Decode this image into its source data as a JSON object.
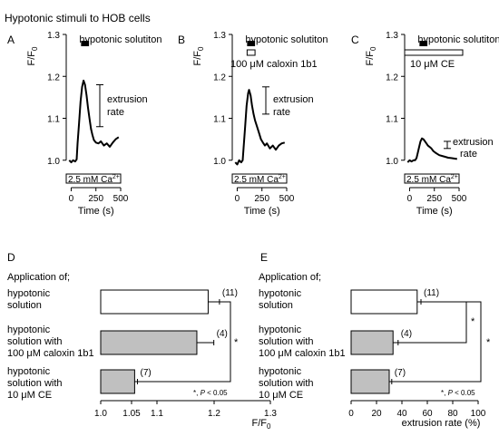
{
  "figure": {
    "title": "Hypotonic stimuli to HOB cells",
    "panel_letters": [
      "A",
      "B",
      "C",
      "D",
      "E"
    ],
    "sub_zero": "0"
  },
  "chart_data": [
    {
      "panel": "A",
      "type": "line",
      "ylabel": "F/F",
      "xlabel": "Time (s)",
      "xlim": [
        -50,
        500
      ],
      "ylim": [
        0.98,
        1.3
      ],
      "xticks": [
        "0",
        "250",
        "500"
      ],
      "yticks": [
        "1.0",
        "1.1",
        "1.2",
        "1.3"
      ],
      "stimulus_label": "hypotonic solutiton",
      "stimulus_window": [
        100,
        180
      ],
      "treatment_label": "",
      "calcium_label": "2.5 mM Ca",
      "calcium_sup": "2+",
      "annotation": [
        "extrusion",
        "rate"
      ],
      "rate_bar": [
        1.08,
        1.18
      ],
      "trace": [
        [
          -20,
          1.0
        ],
        [
          0,
          0.995
        ],
        [
          20,
          1.0
        ],
        [
          40,
          0.997
        ],
        [
          55,
          1.002
        ],
        [
          65,
          1.04
        ],
        [
          80,
          1.09
        ],
        [
          95,
          1.14
        ],
        [
          110,
          1.175
        ],
        [
          125,
          1.19
        ],
        [
          140,
          1.18
        ],
        [
          155,
          1.155
        ],
        [
          170,
          1.125
        ],
        [
          185,
          1.1
        ],
        [
          200,
          1.075
        ],
        [
          215,
          1.06
        ],
        [
          230,
          1.048
        ],
        [
          250,
          1.042
        ],
        [
          275,
          1.04
        ],
        [
          300,
          1.045
        ],
        [
          330,
          1.035
        ],
        [
          360,
          1.04
        ],
        [
          390,
          1.032
        ],
        [
          420,
          1.042
        ],
        [
          450,
          1.05
        ],
        [
          480,
          1.055
        ]
      ]
    },
    {
      "panel": "B",
      "type": "line",
      "ylabel": "F/F",
      "xlabel": "Time (s)",
      "xlim": [
        -50,
        500
      ],
      "ylim": [
        0.98,
        1.3
      ],
      "xticks": [
        "0",
        "250",
        "500"
      ],
      "yticks": [
        "1.0",
        "1.1",
        "1.2",
        "1.3"
      ],
      "stimulus_label": "hypotonic solutiton",
      "stimulus_window": [
        100,
        180
      ],
      "treatment_label": "100 μM caloxin 1b1",
      "calcium_label": "2.5 mM Ca",
      "calcium_sup": "2+",
      "annotation": [
        "extrusion",
        "rate"
      ],
      "rate_bar": [
        1.11,
        1.175
      ],
      "trace": [
        [
          -20,
          0.995
        ],
        [
          0,
          0.99
        ],
        [
          20,
          1.0
        ],
        [
          40,
          0.995
        ],
        [
          55,
          1.0
        ],
        [
          65,
          1.03
        ],
        [
          80,
          1.08
        ],
        [
          95,
          1.13
        ],
        [
          110,
          1.16
        ],
        [
          120,
          1.168
        ],
        [
          135,
          1.155
        ],
        [
          150,
          1.13
        ],
        [
          165,
          1.11
        ],
        [
          180,
          1.095
        ],
        [
          200,
          1.08
        ],
        [
          220,
          1.065
        ],
        [
          240,
          1.05
        ],
        [
          260,
          1.042
        ],
        [
          280,
          1.035
        ],
        [
          300,
          1.04
        ],
        [
          330,
          1.028
        ],
        [
          360,
          1.035
        ],
        [
          390,
          1.025
        ],
        [
          420,
          1.035
        ],
        [
          450,
          1.04
        ],
        [
          480,
          1.042
        ]
      ]
    },
    {
      "panel": "C",
      "type": "line",
      "ylabel": "F/F",
      "xlabel": "Time (s)",
      "xlim": [
        -50,
        500
      ],
      "ylim": [
        0.98,
        1.3
      ],
      "xticks": [
        "0",
        "250",
        "500"
      ],
      "yticks": [
        "1.0",
        "1.1",
        "1.2",
        "1.3"
      ],
      "stimulus_label": "hypotonic solutiton",
      "stimulus_window": [
        100,
        180
      ],
      "treatment_label": "10 μM CE",
      "calcium_label": "2.5 mM Ca",
      "calcium_sup": "2+",
      "annotation": [
        "extrusion",
        "rate"
      ],
      "rate_bar": [
        1.028,
        1.045
      ],
      "trace": [
        [
          -20,
          0.995
        ],
        [
          0,
          1.0
        ],
        [
          20,
          0.997
        ],
        [
          40,
          1.0
        ],
        [
          55,
          1.0
        ],
        [
          70,
          1.005
        ],
        [
          80,
          1.015
        ],
        [
          95,
          1.03
        ],
        [
          110,
          1.045
        ],
        [
          125,
          1.052
        ],
        [
          140,
          1.05
        ],
        [
          155,
          1.045
        ],
        [
          170,
          1.04
        ],
        [
          185,
          1.035
        ],
        [
          200,
          1.032
        ],
        [
          220,
          1.028
        ],
        [
          240,
          1.022
        ],
        [
          260,
          1.018
        ],
        [
          280,
          1.015
        ],
        [
          300,
          1.012
        ],
        [
          330,
          1.01
        ],
        [
          360,
          1.008
        ],
        [
          390,
          1.006
        ],
        [
          420,
          1.005
        ],
        [
          450,
          1.004
        ],
        [
          480,
          1.003
        ]
      ]
    },
    {
      "panel": "D",
      "type": "bar",
      "orientation": "horizontal",
      "heading": "Application of;",
      "categories": [
        [
          "hypotonic",
          "solution"
        ],
        [
          "hypotonic",
          "solution with",
          "100 μM caloxin 1b1"
        ],
        [
          "hypotonic",
          "solution with",
          "10 μM CE"
        ]
      ],
      "values": [
        1.19,
        1.17,
        1.06
      ],
      "errors": [
        0.02,
        0.03,
        0.005
      ],
      "n_labels": [
        "(11)",
        "(4)",
        "(7)"
      ],
      "bar_colors": [
        "#ffffff",
        "#c0c0c0",
        "#c0c0c0"
      ],
      "xlim": [
        1.0,
        1.3
      ],
      "xticks": [
        "1.0",
        "1.05",
        "1.1",
        "1.2",
        "1.3"
      ],
      "xlabel": "F/F",
      "significance": [
        "*"
      ],
      "stat_note": [
        "*, ",
        "P",
        " < 0.05"
      ]
    },
    {
      "panel": "E",
      "type": "bar",
      "orientation": "horizontal",
      "heading": "Application of;",
      "categories": [
        [
          "hypotonic",
          "solution"
        ],
        [
          "hypotonic",
          "solution with",
          "100 μM caloxin 1b1"
        ],
        [
          "hypotonic",
          "solution with",
          "10 μM CE"
        ]
      ],
      "values": [
        52,
        33,
        30
      ],
      "errors": [
        3,
        4,
        2
      ],
      "n_labels": [
        "(11)",
        "(4)",
        "(7)"
      ],
      "bar_colors": [
        "#ffffff",
        "#c0c0c0",
        "#c0c0c0"
      ],
      "xlim": [
        0,
        100
      ],
      "xticks": [
        "0",
        "20",
        "40",
        "60",
        "80",
        "100"
      ],
      "xlabel": "extrusion rate (%)",
      "significance": [
        "*",
        "*"
      ],
      "stat_note": [
        "*, ",
        "P",
        " < 0.05"
      ]
    }
  ],
  "colors": {
    "line": "#000000",
    "bar_open": "#ffffff",
    "bar_filled": "#c0c0c0"
  }
}
